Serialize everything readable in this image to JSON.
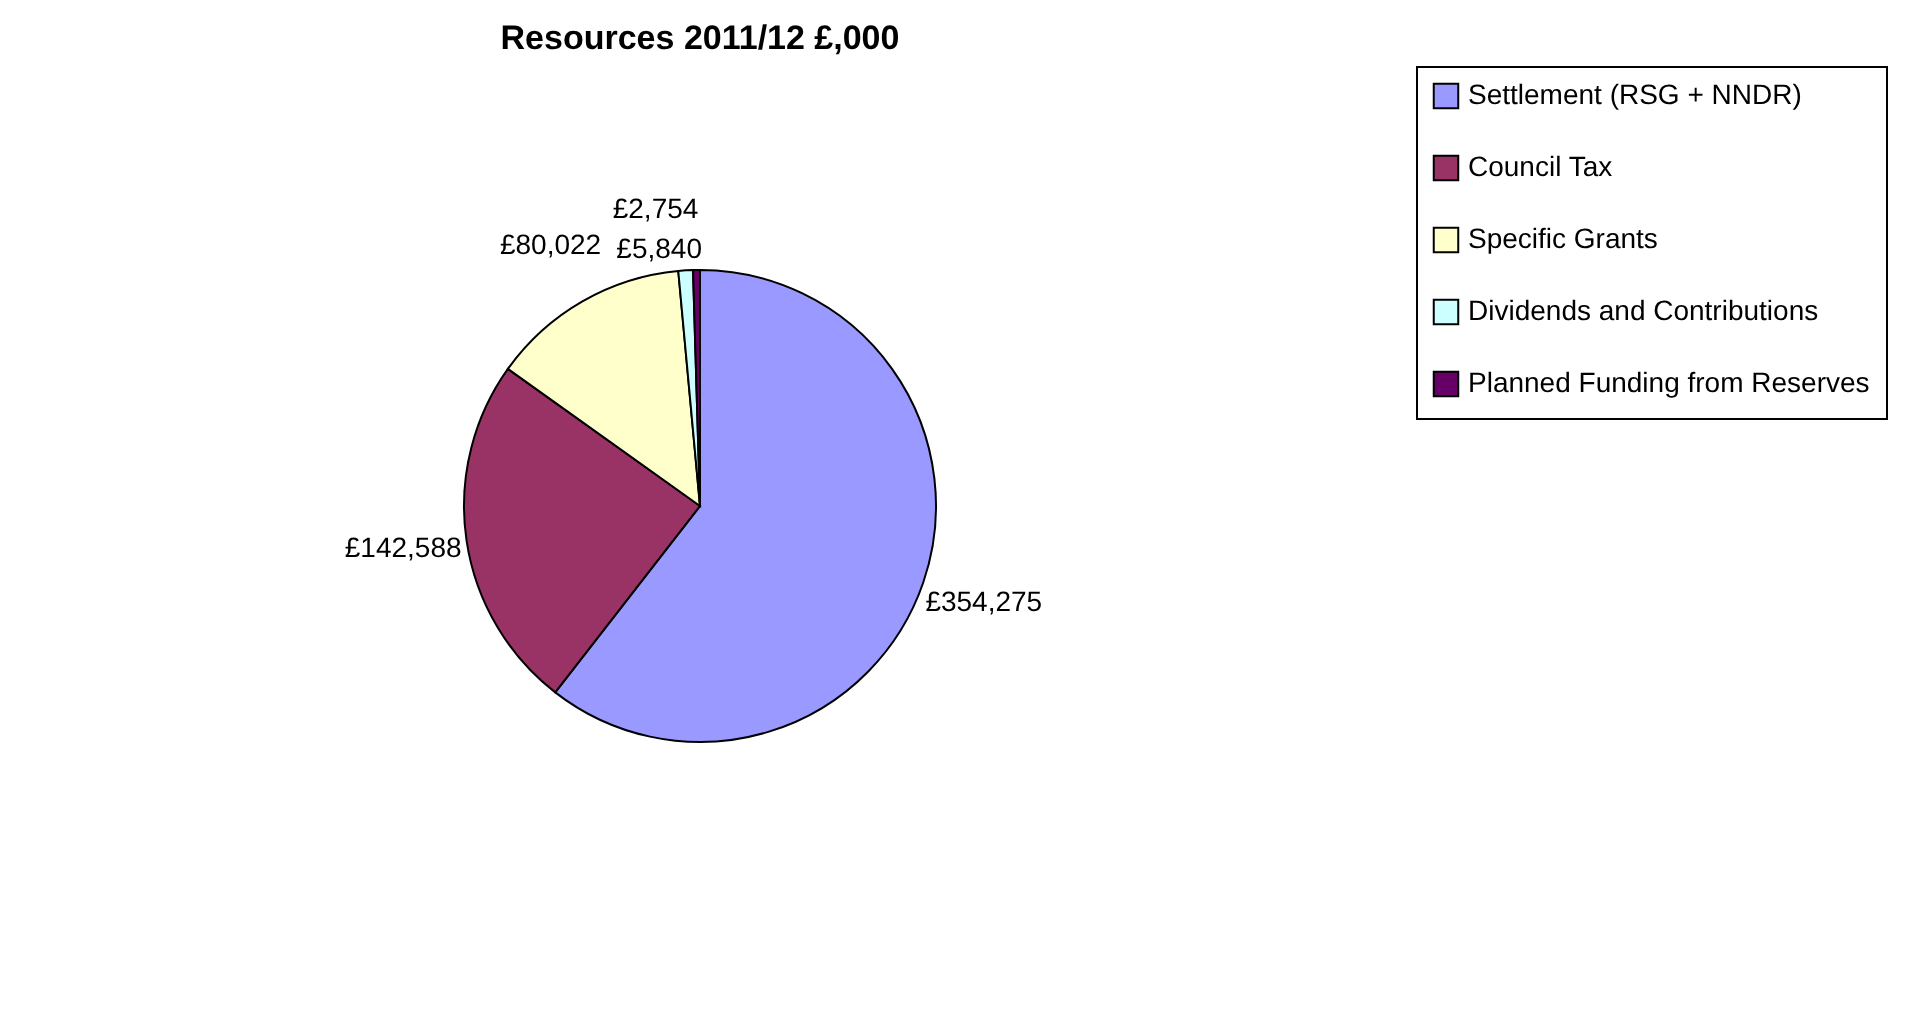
{
  "chart_data": {
    "type": "pie",
    "title": "Resources 2011/12 £,000",
    "categories": [
      "Settlement (RSG + NNDR)",
      "Council Tax",
      "Specific Grants",
      "Dividends and Contributions",
      "Planned Funding from Reserves"
    ],
    "values": [
      354275,
      142588,
      80022,
      5840,
      2754
    ],
    "value_labels": [
      "£354,275",
      "£142,588",
      "£80,022",
      "£5,840",
      "£2,754"
    ],
    "colors": [
      "#9999ff",
      "#993366",
      "#ffffcc",
      "#ccffff",
      "#660066"
    ],
    "legend": "right"
  }
}
